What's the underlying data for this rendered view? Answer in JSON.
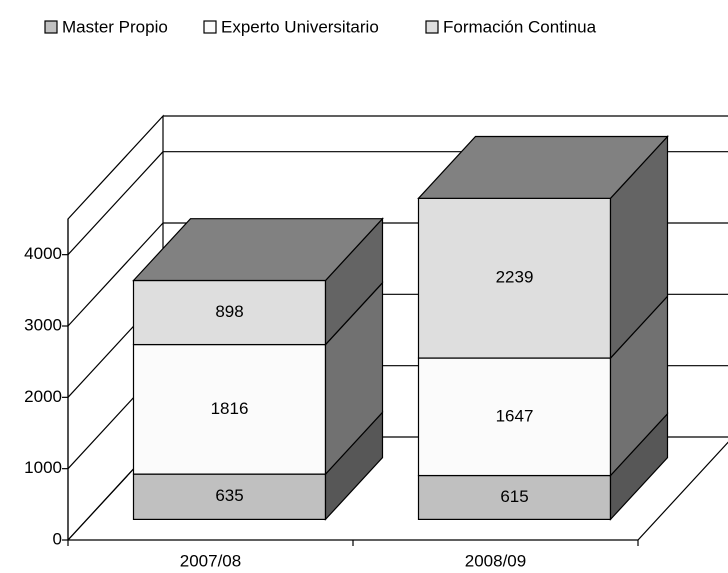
{
  "chart_data": {
    "type": "bar3d_stacked",
    "categories": [
      "2007/08",
      "2008/09"
    ],
    "series": [
      {
        "name": "Master Propio",
        "color": "#c0c0c0",
        "values": [
          635,
          615
        ]
      },
      {
        "name": "Experto Universitario",
        "color": "#fbfbfb",
        "values": [
          1816,
          1647
        ]
      },
      {
        "name": "Formación Continua",
        "color": "#dedede",
        "values": [
          898,
          2239
        ]
      }
    ],
    "ylim": [
      0,
      4500
    ],
    "yticks": [
      0,
      1000,
      2000,
      3000,
      4000
    ],
    "grid": true,
    "legend": "top"
  }
}
